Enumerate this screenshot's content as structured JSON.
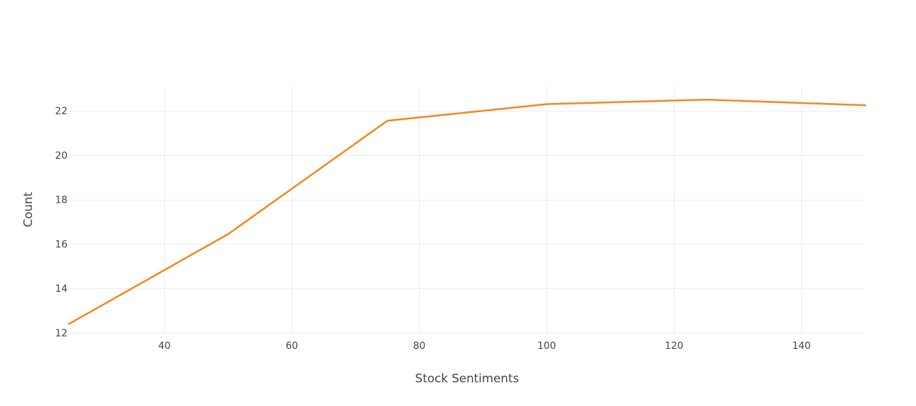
{
  "chart_data": {
    "type": "line",
    "title": "",
    "xlabel": "Stock Sentiments",
    "ylabel": "Count",
    "xlim": [
      25,
      150
    ],
    "ylim": [
      12,
      23.1
    ],
    "xticks": [
      40,
      60,
      80,
      100,
      120,
      140
    ],
    "yticks": [
      12,
      14,
      16,
      18,
      20,
      22
    ],
    "grid": true,
    "series": [
      {
        "color": "#f58518",
        "x": [
          25,
          50,
          75,
          100,
          125,
          150
        ],
        "y": [
          12.4,
          16.45,
          21.55,
          22.3,
          22.5,
          22.25
        ]
      }
    ]
  }
}
